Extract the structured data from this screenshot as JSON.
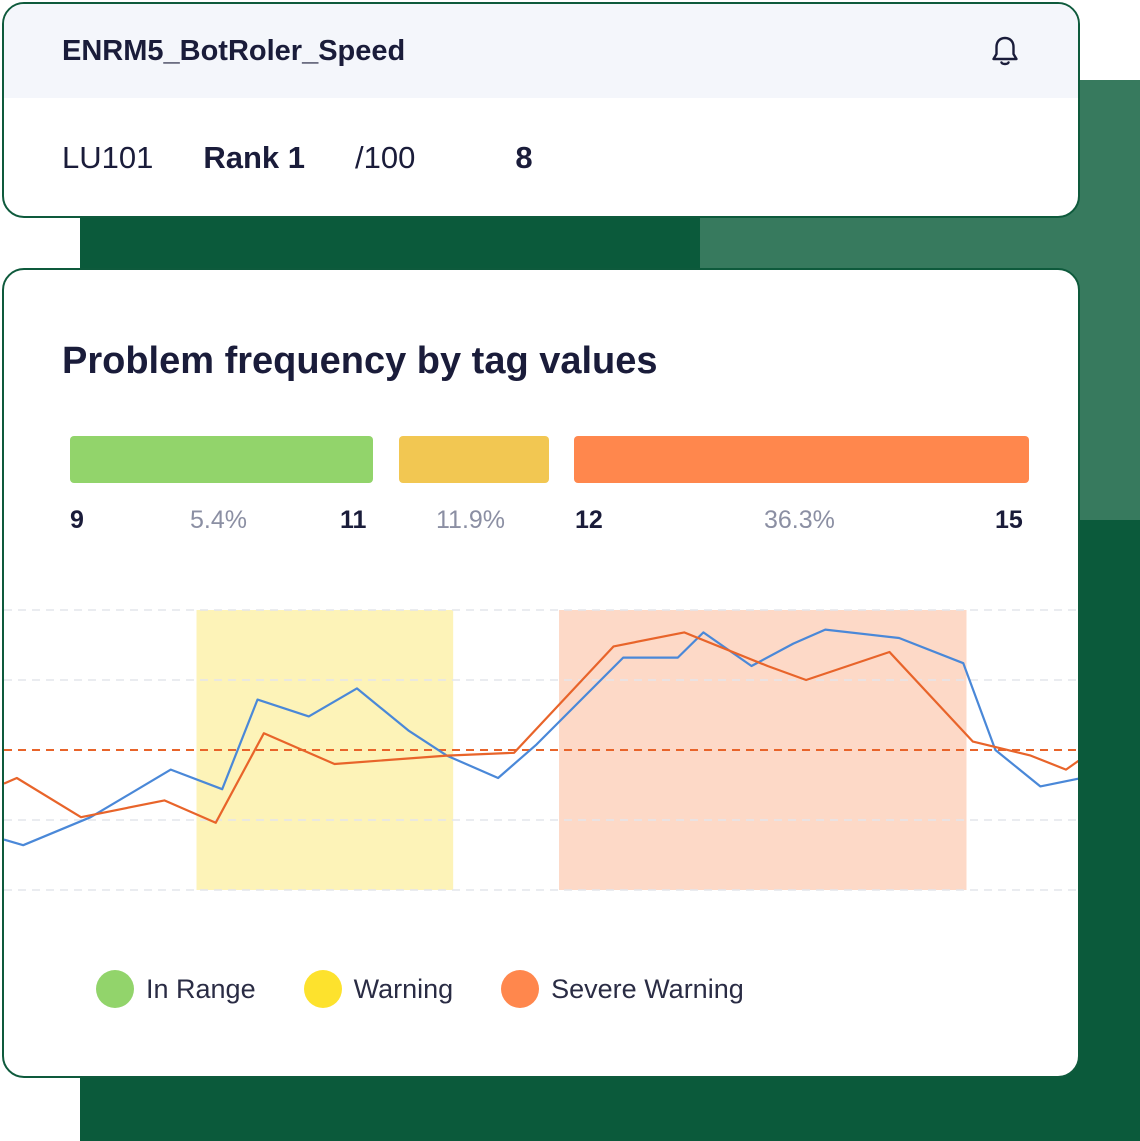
{
  "header": {
    "tag_name": "ENRM5_BotRoler_Speed",
    "unit": "LU101",
    "rank_label": "Rank 1",
    "rank_total": "/100",
    "count": "8"
  },
  "panel": {
    "title": "Problem frequency by tag values",
    "ranges": [
      {
        "name": "In Range",
        "min": "9",
        "max": "11",
        "pct": "5.4%",
        "color": "#92d46b"
      },
      {
        "name": "Warning",
        "min": "",
        "max": "",
        "pct": "11.9%",
        "color": "#f2c752"
      },
      {
        "name": "Severe Warning",
        "min": "12",
        "max": "15",
        "pct": "36.3%",
        "color": "#ff874d"
      }
    ]
  },
  "legend": [
    {
      "label": "In Range",
      "color": "#92d46b"
    },
    {
      "label": "Warning",
      "color": "#fde22d"
    },
    {
      "label": "Severe Warning",
      "color": "#ff874d"
    }
  ],
  "chart_data": {
    "type": "line",
    "ylim": [
      0,
      100
    ],
    "grid": true,
    "threshold": 50,
    "bands": [
      {
        "name": "Warning",
        "x0": 10,
        "x1": 18,
        "color": "#fdf3b8"
      },
      {
        "name": "Severe Warning",
        "x0": 21.3,
        "x1": 34,
        "color": "#fdd9c7"
      }
    ],
    "series": [
      {
        "color": "#4a88d8",
        "points": [
          [
            4,
            18
          ],
          [
            4.6,
            16
          ],
          [
            6.7,
            26
          ],
          [
            9.2,
            43
          ],
          [
            10.8,
            36
          ],
          [
            11.9,
            68
          ],
          [
            13.5,
            62
          ],
          [
            15,
            72
          ],
          [
            16.6,
            57
          ],
          [
            17.8,
            48
          ],
          [
            19.4,
            40
          ],
          [
            20.6,
            52
          ],
          [
            23.3,
            83
          ],
          [
            25,
            83
          ],
          [
            25.8,
            92
          ],
          [
            27.3,
            80
          ],
          [
            28.6,
            88
          ],
          [
            29.6,
            93
          ],
          [
            31.9,
            90
          ],
          [
            33.9,
            81
          ],
          [
            34.9,
            50
          ],
          [
            36.3,
            37
          ],
          [
            37.6,
            40
          ]
        ]
      },
      {
        "color": "#e8642a",
        "points": [
          [
            4,
            38
          ],
          [
            4.4,
            40
          ],
          [
            6.4,
            26
          ],
          [
            9,
            32
          ],
          [
            10.6,
            24
          ],
          [
            12.1,
            56
          ],
          [
            14.3,
            45
          ],
          [
            17.8,
            48
          ],
          [
            19.9,
            49
          ],
          [
            23,
            87
          ],
          [
            25.2,
            92
          ],
          [
            27.8,
            80
          ],
          [
            29,
            75
          ],
          [
            31.6,
            85
          ],
          [
            34.2,
            53
          ],
          [
            36,
            48
          ],
          [
            37.1,
            43
          ],
          [
            37.6,
            47
          ]
        ]
      }
    ]
  }
}
